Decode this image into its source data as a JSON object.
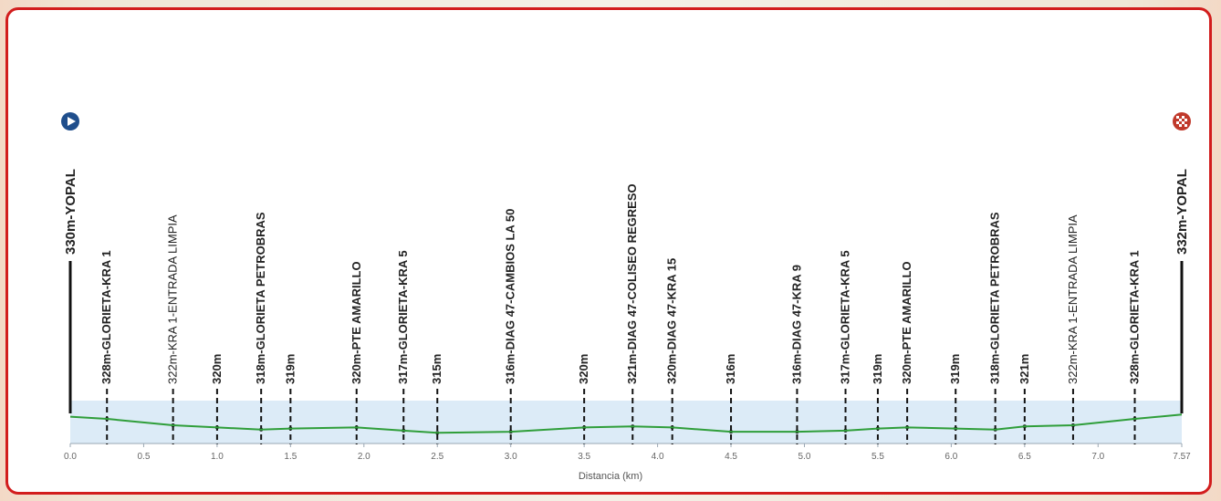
{
  "chart_data": {
    "type": "area",
    "xlabel": "Distancia (km)",
    "xlim": [
      0,
      7.57
    ],
    "ylim": [
      305,
      345
    ],
    "x_ticks": [
      0.0,
      0.5,
      1.0,
      1.5,
      2.0,
      2.5,
      3.0,
      3.5,
      4.0,
      4.5,
      5.0,
      5.5,
      6.0,
      6.5,
      7.0,
      7.57
    ],
    "x_tick_labels": [
      "0.0",
      "0.5",
      "1.0",
      "1.5",
      "2.0",
      "2.5",
      "3.0",
      "3.5",
      "4.0",
      "4.5",
      "5.0",
      "5.5",
      "6.0",
      "6.5",
      "7.0",
      "7.57"
    ],
    "profile": {
      "x": [
        0.0,
        0.25,
        0.7,
        1.0,
        1.3,
        1.5,
        1.95,
        2.27,
        2.5,
        3.0,
        3.5,
        3.83,
        4.1,
        4.5,
        4.95,
        5.28,
        5.5,
        5.7,
        6.03,
        6.3,
        6.5,
        6.83,
        7.25,
        7.57
      ],
      "y": [
        330,
        328,
        322,
        320,
        318,
        319,
        320,
        317,
        315,
        316,
        320,
        321,
        320,
        316,
        316,
        317,
        319,
        320,
        319,
        318,
        321,
        322,
        328,
        332
      ]
    },
    "start": {
      "x": 0.0,
      "label": "330m-YOPAL"
    },
    "finish": {
      "x": 7.57,
      "label": "332m-YOPAL"
    },
    "waypoints": [
      {
        "x": 0.25,
        "label": "328m-GLORIETA-KRA 1",
        "bold": true
      },
      {
        "x": 0.7,
        "label": "322m-KRA 1-ENTRADA LIMPIA",
        "bold": false
      },
      {
        "x": 1.0,
        "label": "320m",
        "bold": true
      },
      {
        "x": 1.3,
        "label": "318m-GLORIETA PETROBRAS",
        "bold": true
      },
      {
        "x": 1.5,
        "label": "319m",
        "bold": true
      },
      {
        "x": 1.95,
        "label": "320m-PTE AMARILLO",
        "bold": true
      },
      {
        "x": 2.27,
        "label": "317m-GLORIETA-KRA 5",
        "bold": true
      },
      {
        "x": 2.5,
        "label": "315m",
        "bold": true
      },
      {
        "x": 3.0,
        "label": "316m-DIAG 47-CAMBIOS LA 50",
        "bold": true
      },
      {
        "x": 3.5,
        "label": "320m",
        "bold": true
      },
      {
        "x": 3.83,
        "label": "321m-DIAG 47-COLISEO REGRESO",
        "bold": true
      },
      {
        "x": 4.1,
        "label": "320m-DIAG 47-KRA 15",
        "bold": true
      },
      {
        "x": 4.5,
        "label": "316m",
        "bold": true
      },
      {
        "x": 4.95,
        "label": "316m-DIAG 47-KRA 9",
        "bold": true
      },
      {
        "x": 5.28,
        "label": "317m-GLORIETA-KRA 5",
        "bold": true
      },
      {
        "x": 5.5,
        "label": "319m",
        "bold": true
      },
      {
        "x": 5.7,
        "label": "320m-PTE AMARILLO",
        "bold": true
      },
      {
        "x": 6.03,
        "label": "319m",
        "bold": true
      },
      {
        "x": 6.3,
        "label": "318m-GLORIETA PETROBRAS",
        "bold": true
      },
      {
        "x": 6.5,
        "label": "321m",
        "bold": true
      },
      {
        "x": 6.83,
        "label": "322m-KRA 1-ENTRADA LIMPIA",
        "bold": false
      },
      {
        "x": 7.25,
        "label": "328m-GLORIETA-KRA 1",
        "bold": true
      }
    ],
    "colors": {
      "profile_line": "#2f9e3a",
      "band_fill": "#dcebf7",
      "start_icon": "#1f4e8c",
      "finish_icon": "#c0392b",
      "frame_border": "#d21d1d"
    },
    "icons": {
      "start": "play-icon",
      "finish": "checkered-flag-icon"
    }
  }
}
